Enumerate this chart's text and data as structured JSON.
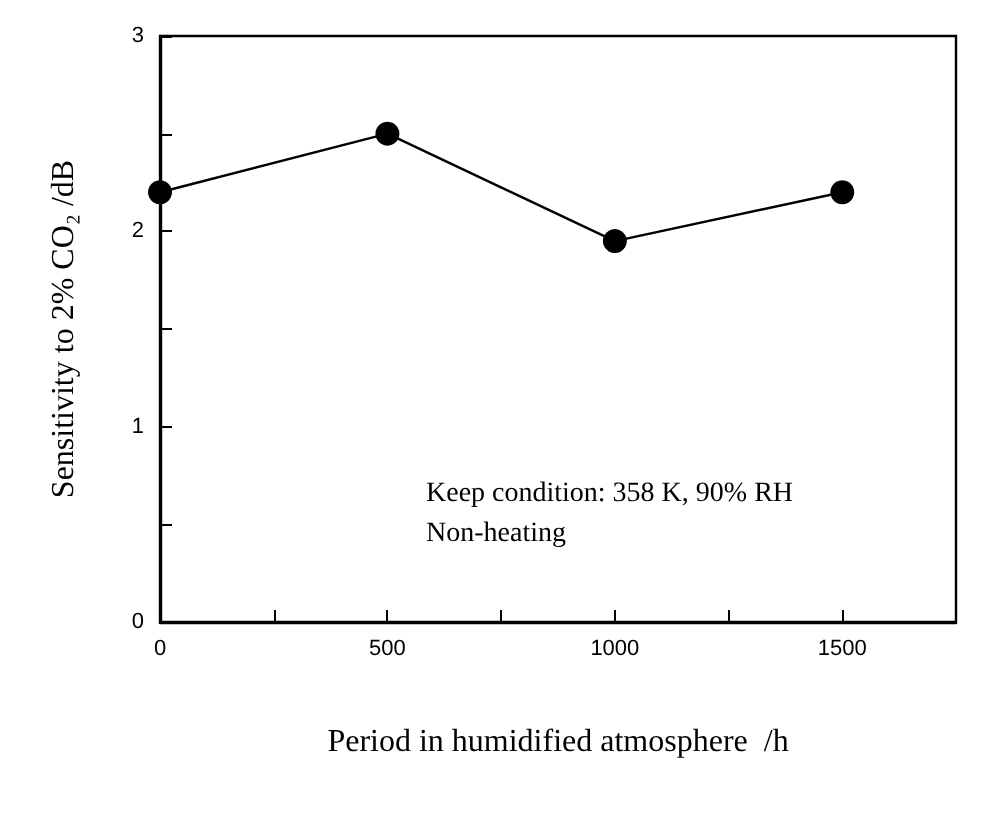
{
  "chart_data": {
    "type": "line",
    "xlabel": "Period in humidified atmosphere  /h",
    "ylabel": "Sensitivity to 2% CO₂ /dB",
    "x": [
      0,
      500,
      1000,
      1500
    ],
    "values": [
      2.2,
      2.5,
      1.95,
      2.2
    ],
    "color": "#000000",
    "marker": "circle",
    "line_style": "solid",
    "grid": false,
    "xlim": [
      0,
      1750
    ],
    "ylim": [
      0,
      3
    ],
    "xticks": [
      0,
      {
        "value": 250,
        "label": null
      },
      500,
      {
        "value": 750,
        "label": null
      },
      1000,
      {
        "value": 1250,
        "label": null
      },
      1500
    ],
    "yticks": [
      0,
      {
        "value": 0.5,
        "label": null
      },
      1,
      {
        "value": 1.5,
        "label": null
      },
      2,
      {
        "value": 2.5,
        "label": null
      },
      3
    ],
    "annotations": [
      "Keep condition: 358 K, 90% RH",
      "Non-heating"
    ]
  }
}
